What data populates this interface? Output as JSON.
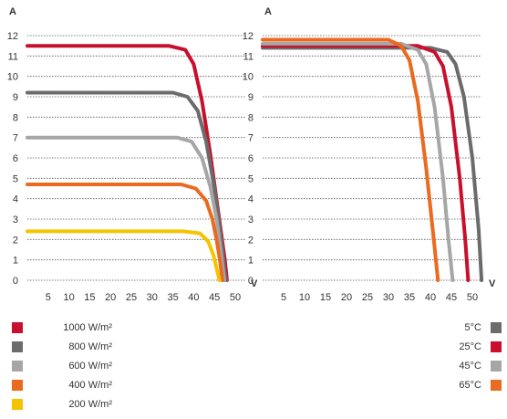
{
  "chart_data": [
    {
      "type": "line",
      "title": "",
      "ylabel": "A",
      "xlabel": "V",
      "xlim": [
        0,
        52
      ],
      "ylim": [
        0,
        12
      ],
      "xticks": [
        5,
        10,
        15,
        20,
        25,
        30,
        35,
        40,
        45,
        50
      ],
      "yticks": [
        0,
        1,
        2,
        3,
        4,
        5,
        6,
        7,
        8,
        9,
        10,
        11,
        12
      ],
      "grid": "horizontal dotted",
      "series": [
        {
          "name": "1000 W/m²",
          "color": "#c8102e",
          "points": [
            [
              0,
              11.5
            ],
            [
              34,
              11.5
            ],
            [
              38,
              11.3
            ],
            [
              40,
              10.6
            ],
            [
              42,
              8.8
            ],
            [
              44,
              6.2
            ],
            [
              46,
              3.2
            ],
            [
              47.5,
              1.0
            ],
            [
              48,
              0
            ]
          ]
        },
        {
          "name": "800 W/m²",
          "color": "#6b6b6b",
          "points": [
            [
              0,
              9.2
            ],
            [
              35,
              9.2
            ],
            [
              38.5,
              9.0
            ],
            [
              41,
              8.3
            ],
            [
              43,
              6.8
            ],
            [
              45,
              4.5
            ],
            [
              46.5,
              2.2
            ],
            [
              47.5,
              0.4
            ],
            [
              47.8,
              0
            ]
          ]
        },
        {
          "name": "600 W/m²",
          "color": "#a6a6a6",
          "points": [
            [
              0,
              7.0
            ],
            [
              36,
              7.0
            ],
            [
              39.5,
              6.8
            ],
            [
              42,
              6.0
            ],
            [
              44,
              4.6
            ],
            [
              45.5,
              3.0
            ],
            [
              46.5,
              1.5
            ],
            [
              47.2,
              0.3
            ],
            [
              47.4,
              0
            ]
          ]
        },
        {
          "name": "400 W/m²",
          "color": "#ea6a20",
          "points": [
            [
              0,
              4.7
            ],
            [
              37,
              4.7
            ],
            [
              40.5,
              4.5
            ],
            [
              43,
              3.9
            ],
            [
              44.5,
              3.0
            ],
            [
              45.5,
              2.0
            ],
            [
              46.3,
              1.0
            ],
            [
              46.9,
              0
            ]
          ]
        },
        {
          "name": "200 W/m²",
          "color": "#f5c400",
          "points": [
            [
              0,
              2.4
            ],
            [
              37.5,
              2.4
            ],
            [
              41.5,
              2.3
            ],
            [
              43.5,
              1.9
            ],
            [
              44.8,
              1.2
            ],
            [
              45.6,
              0.5
            ],
            [
              46.2,
              0
            ]
          ]
        }
      ]
    },
    {
      "type": "line",
      "title": "",
      "ylabel": "A",
      "xlabel": "V",
      "xlim": [
        0,
        55
      ],
      "ylim": [
        0,
        12
      ],
      "xticks": [
        5,
        10,
        15,
        20,
        25,
        30,
        35,
        40,
        45,
        50
      ],
      "yticks": [
        0,
        1,
        2,
        3,
        4,
        5,
        6,
        7,
        8,
        9,
        10,
        11,
        12
      ],
      "grid": "horizontal dotted",
      "series": [
        {
          "name": "5°C",
          "color": "#6b6b6b",
          "points": [
            [
              0,
              11.4
            ],
            [
              40,
              11.4
            ],
            [
              44,
              11.2
            ],
            [
              46,
              10.6
            ],
            [
              48,
              9.0
            ],
            [
              50,
              6.0
            ],
            [
              51.5,
              2.5
            ],
            [
              52.2,
              0
            ]
          ]
        },
        {
          "name": "25°C",
          "color": "#c8102e",
          "points": [
            [
              0,
              11.5
            ],
            [
              37,
              11.5
            ],
            [
              41,
              11.2
            ],
            [
              43,
              10.5
            ],
            [
              45,
              8.5
            ],
            [
              47,
              5.0
            ],
            [
              48.3,
              2.0
            ],
            [
              49,
              0
            ]
          ]
        },
        {
          "name": "45°C",
          "color": "#a6a6a6",
          "points": [
            [
              0,
              11.6
            ],
            [
              33,
              11.6
            ],
            [
              37,
              11.3
            ],
            [
              39,
              10.6
            ],
            [
              41,
              8.5
            ],
            [
              43,
              5.0
            ],
            [
              44.3,
              2.0
            ],
            [
              45.3,
              0
            ]
          ]
        },
        {
          "name": "65°C",
          "color": "#ea6a20",
          "points": [
            [
              0,
              11.8
            ],
            [
              30,
              11.8
            ],
            [
              33,
              11.5
            ],
            [
              35,
              10.8
            ],
            [
              37,
              8.8
            ],
            [
              39,
              5.5
            ],
            [
              40.8,
              2.0
            ],
            [
              41.8,
              0
            ]
          ]
        }
      ]
    }
  ],
  "legend_left": [
    {
      "label": "1000 W/m²",
      "color": "#c8102e"
    },
    {
      "label": "800 W/m²",
      "color": "#6b6b6b"
    },
    {
      "label": "600 W/m²",
      "color": "#a6a6a6"
    },
    {
      "label": "400 W/m²",
      "color": "#ea6a20"
    },
    {
      "label": "200 W/m²",
      "color": "#f5c400"
    }
  ],
  "legend_right": [
    {
      "label": "5°C",
      "color": "#6b6b6b"
    },
    {
      "label": "25°C",
      "color": "#c8102e"
    },
    {
      "label": "45°C",
      "color": "#a6a6a6"
    },
    {
      "label": "65°C",
      "color": "#ea6a20"
    }
  ]
}
